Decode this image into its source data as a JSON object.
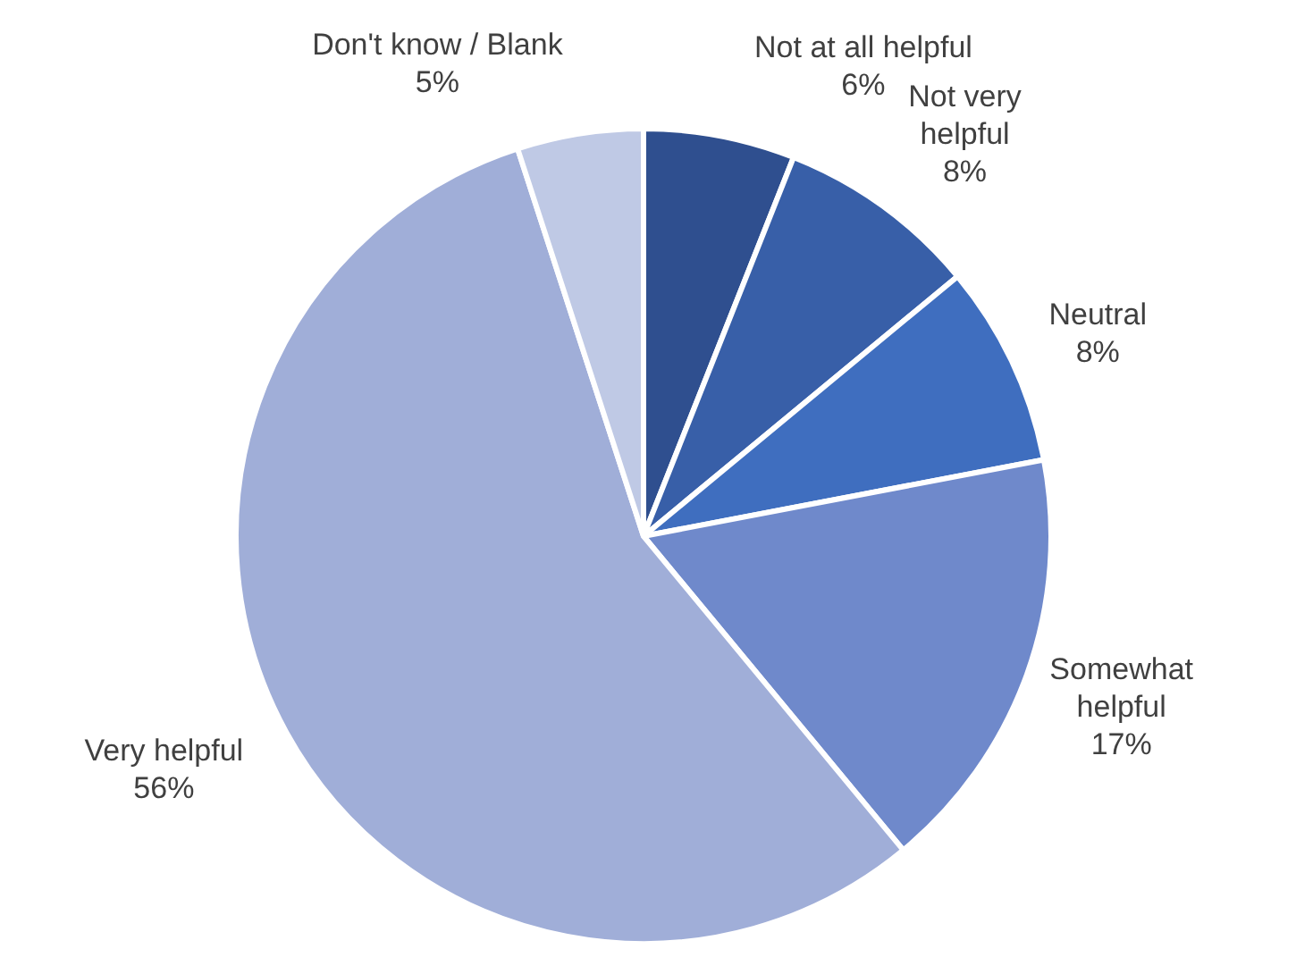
{
  "chart_data": {
    "type": "pie",
    "categories": [
      "Not at all helpful",
      "Not very helpful",
      "Neutral",
      "Somewhat helpful",
      "Very helpful",
      "Don't know / Blank"
    ],
    "values": [
      6,
      8,
      8,
      17,
      56,
      5
    ],
    "value_labels": [
      "6%",
      "8%",
      "8%",
      "17%",
      "56%",
      "5%"
    ],
    "colors": [
      "#2f4f8f",
      "#385fa8",
      "#3f6ebf",
      "#6f89cb",
      "#a0aed8",
      "#bfc9e5"
    ]
  }
}
